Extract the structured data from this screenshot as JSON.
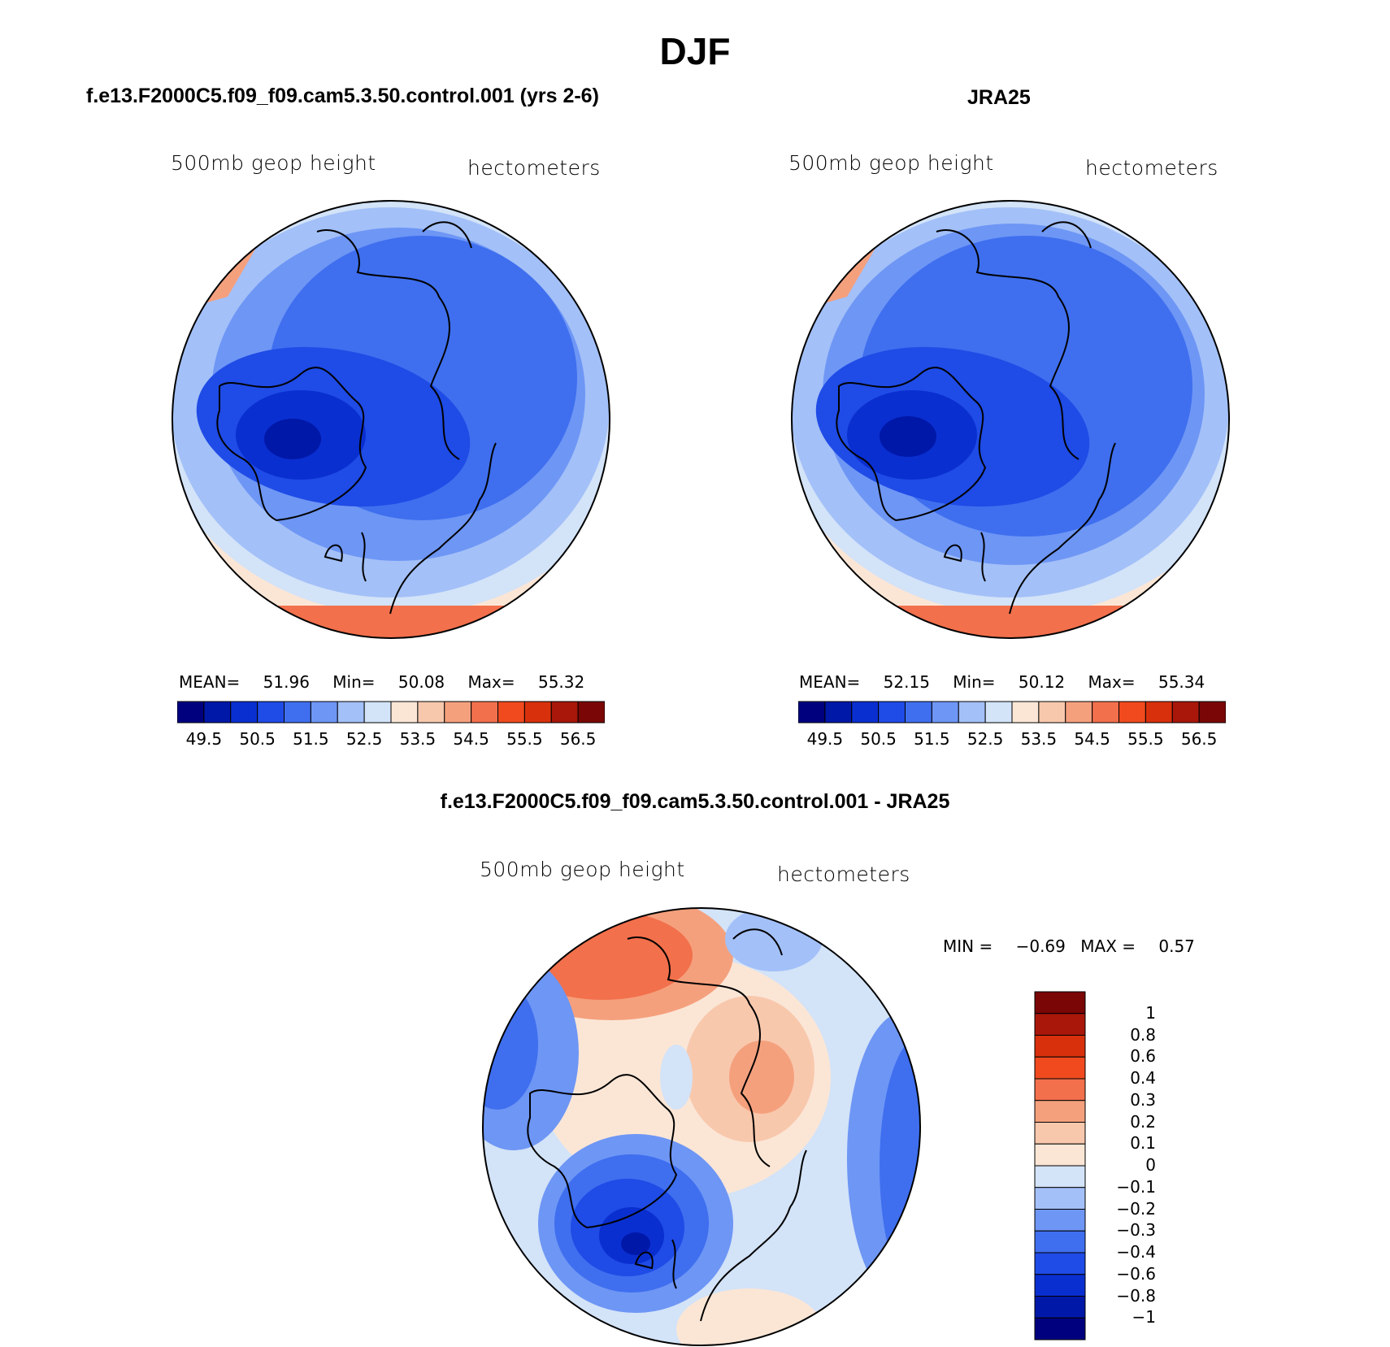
{
  "title": "DJF",
  "panels": {
    "model": {
      "title": "f.e13.F2000C5.f09_f09.cam5.3.50.control.001 (yrs 2-6)",
      "variable": "500mb geop height",
      "units": "hectometers",
      "stats": {
        "mean_label": "MEAN=",
        "mean": "51.96",
        "min_label": "Min=",
        "min": "50.08",
        "max_label": "Max=",
        "max": "55.32"
      }
    },
    "obs": {
      "title": "JRA25",
      "variable": "500mb geop height",
      "units": "hectometers",
      "stats": {
        "mean_label": "MEAN=",
        "mean": "52.15",
        "min_label": "Min=",
        "min": "50.12",
        "max_label": "Max=",
        "max": "55.34"
      }
    },
    "diff": {
      "title": "f.e13.F2000C5.f09_f09.cam5.3.50.control.001 - JRA25",
      "variable": "500mb geop height",
      "units": "hectometers",
      "stats": {
        "min_label": "MIN =",
        "min": "−0.69",
        "max_label": "MAX =",
        "max": "0.57"
      }
    }
  },
  "abs_colorbar": {
    "colors": [
      "#00007f",
      "#0018a8",
      "#0a2fd0",
      "#1f4be6",
      "#3f6fef",
      "#6e96f5",
      "#a3c0f8",
      "#d3e3f8",
      "#fbe6d6",
      "#f8c8ad",
      "#f5a07d",
      "#f2704c",
      "#f04a1e",
      "#d8300c",
      "#a8170a",
      "#7a0606"
    ],
    "labels": [
      "49.5",
      "50.5",
      "51.5",
      "52.5",
      "53.5",
      "54.5",
      "55.5",
      "56.5"
    ]
  },
  "diff_colorbar": {
    "colors": [
      "#7a0606",
      "#a8170a",
      "#d8300c",
      "#f04a1e",
      "#f2704c",
      "#f5a07d",
      "#f8c8ad",
      "#fbe6d6",
      "#d3e3f8",
      "#a3c0f8",
      "#6e96f5",
      "#3f6fef",
      "#1f4be6",
      "#0a2fd0",
      "#0018a8",
      "#00007f"
    ],
    "labels": [
      "1",
      "0.8",
      "0.6",
      "0.4",
      "0.3",
      "0.2",
      "0.1",
      "0",
      "−0.1",
      "−0.2",
      "−0.3",
      "−0.4",
      "−0.6",
      "−0.8",
      "−1"
    ]
  }
}
